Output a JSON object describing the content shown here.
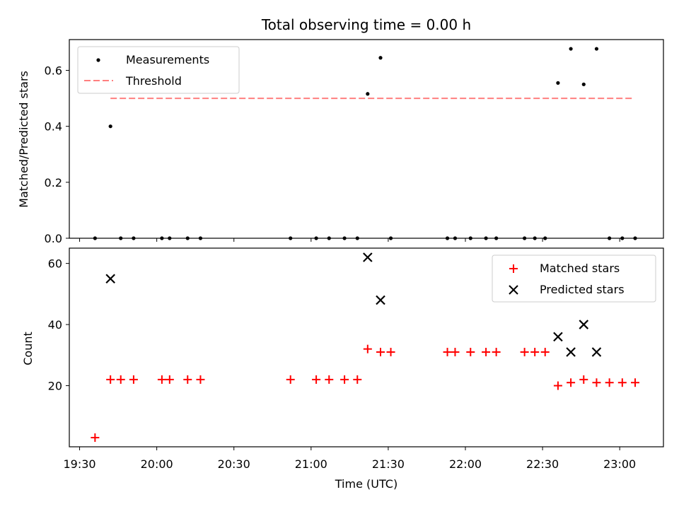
{
  "chart_data": [
    {
      "type": "scatter",
      "title": "Total observing time = 0.00 h",
      "xlabel": "",
      "ylabel": "Matched/Predicted stars",
      "ylim": [
        0,
        0.71
      ],
      "yticks": [
        "0.0",
        "0.2",
        "0.4",
        "0.6"
      ],
      "legend_position": "top-left",
      "threshold": {
        "name": "Threshold",
        "value": 0.5,
        "x_start": "19:42",
        "x_end": "23:05",
        "color": "#ff7f7f",
        "style": "dashed"
      },
      "series": [
        {
          "name": "Measurements",
          "color": "#000000",
          "marker": "dot",
          "x": [
            "19:36",
            "19:42",
            "19:46",
            "19:51",
            "20:02",
            "20:05",
            "20:12",
            "20:17",
            "20:52",
            "21:02",
            "21:07",
            "21:13",
            "21:18",
            "21:22",
            "21:27",
            "21:31",
            "21:53",
            "21:56",
            "22:02",
            "22:08",
            "22:12",
            "22:23",
            "22:27",
            "22:31",
            "22:36",
            "22:41",
            "22:46",
            "22:51",
            "22:56",
            "23:01",
            "23:06"
          ],
          "y": [
            0,
            0.4,
            0,
            0,
            0,
            0,
            0,
            0,
            0,
            0,
            0,
            0,
            0,
            0.516,
            0.645,
            0,
            0,
            0,
            0,
            0,
            0,
            0,
            0,
            0,
            0.555,
            0.677,
            0.55,
            0.677,
            0,
            0,
            0
          ]
        }
      ]
    },
    {
      "type": "scatter",
      "xlabel": "Time (UTC)",
      "ylabel": "Count",
      "ylim": [
        0,
        65
      ],
      "yticks": [
        "20",
        "40",
        "60"
      ],
      "xticks": [
        "19:30",
        "20:00",
        "20:30",
        "21:00",
        "21:30",
        "22:00",
        "22:30",
        "23:00"
      ],
      "xlim": [
        "19:26",
        "23:17"
      ],
      "legend_position": "top-right",
      "series": [
        {
          "name": "Matched stars",
          "color": "#ff0000",
          "marker": "plus",
          "x": [
            "19:36",
            "19:42",
            "19:46",
            "19:51",
            "20:02",
            "20:05",
            "20:12",
            "20:17",
            "20:52",
            "21:02",
            "21:07",
            "21:13",
            "21:18",
            "21:22",
            "21:27",
            "21:31",
            "21:53",
            "21:56",
            "22:02",
            "22:08",
            "22:12",
            "22:23",
            "22:27",
            "22:31",
            "22:36",
            "22:41",
            "22:46",
            "22:51",
            "22:56",
            "23:01",
            "23:06"
          ],
          "y": [
            3,
            22,
            22,
            22,
            22,
            22,
            22,
            22,
            22,
            22,
            22,
            22,
            22,
            32,
            31,
            31,
            31,
            31,
            31,
            31,
            31,
            31,
            31,
            31,
            20,
            21,
            22,
            21,
            21,
            21,
            21
          ]
        },
        {
          "name": "Predicted stars",
          "color": "#000000",
          "marker": "x",
          "x": [
            "19:42",
            "21:22",
            "21:27",
            "22:36",
            "22:41",
            "22:46",
            "22:51"
          ],
          "y": [
            55,
            62,
            48,
            36,
            31,
            40,
            31
          ]
        }
      ]
    }
  ]
}
